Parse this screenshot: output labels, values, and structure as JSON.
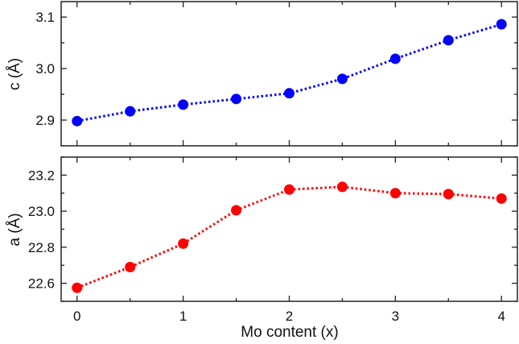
{
  "chart_data": [
    {
      "type": "line",
      "panel": "top",
      "title": "",
      "xlabel": "",
      "ylabel": "c (Å)",
      "x": [
        0,
        0.5,
        1,
        1.5,
        2,
        2.5,
        3,
        3.5,
        4
      ],
      "series": [
        {
          "name": "c",
          "color": "#0000ff",
          "values": [
            2.898,
            2.917,
            2.93,
            2.941,
            2.952,
            2.98,
            3.019,
            3.055,
            3.086
          ]
        }
      ],
      "xlim": [
        -0.15,
        4.15
      ],
      "ylim": [
        2.85,
        3.13
      ],
      "yticks": [
        2.9,
        3.0,
        3.1
      ],
      "ytick_labels": [
        "2.9",
        "3.0",
        "3.1"
      ],
      "line_style": "dotted",
      "marker": "circle",
      "grid": false,
      "legend": null
    },
    {
      "type": "line",
      "panel": "bottom",
      "title": "",
      "xlabel": "Mo content (x)",
      "ylabel": "a (Å)",
      "x": [
        0,
        0.5,
        1,
        1.5,
        2,
        2.5,
        3,
        3.5,
        4
      ],
      "series": [
        {
          "name": "a",
          "color": "#ff0000",
          "values": [
            22.575,
            22.69,
            22.82,
            23.005,
            23.12,
            23.135,
            23.1,
            23.095,
            23.07
          ]
        }
      ],
      "xlim": [
        -0.15,
        4.15
      ],
      "ylim": [
        22.5,
        23.3
      ],
      "xticks": [
        0,
        1,
        2,
        3,
        4
      ],
      "xtick_labels": [
        "0",
        "1",
        "2",
        "3",
        "4"
      ],
      "yticks": [
        22.6,
        22.8,
        23.0,
        23.2
      ],
      "ytick_labels": [
        "22.6",
        "22.8",
        "23.0",
        "23.2"
      ],
      "line_style": "dotted",
      "marker": "circle",
      "grid": false,
      "legend": null
    }
  ],
  "labels": {
    "top_ylabel": "c (Å)",
    "bottom_ylabel": "a (Å)",
    "xlabel": "Mo content (x)"
  }
}
